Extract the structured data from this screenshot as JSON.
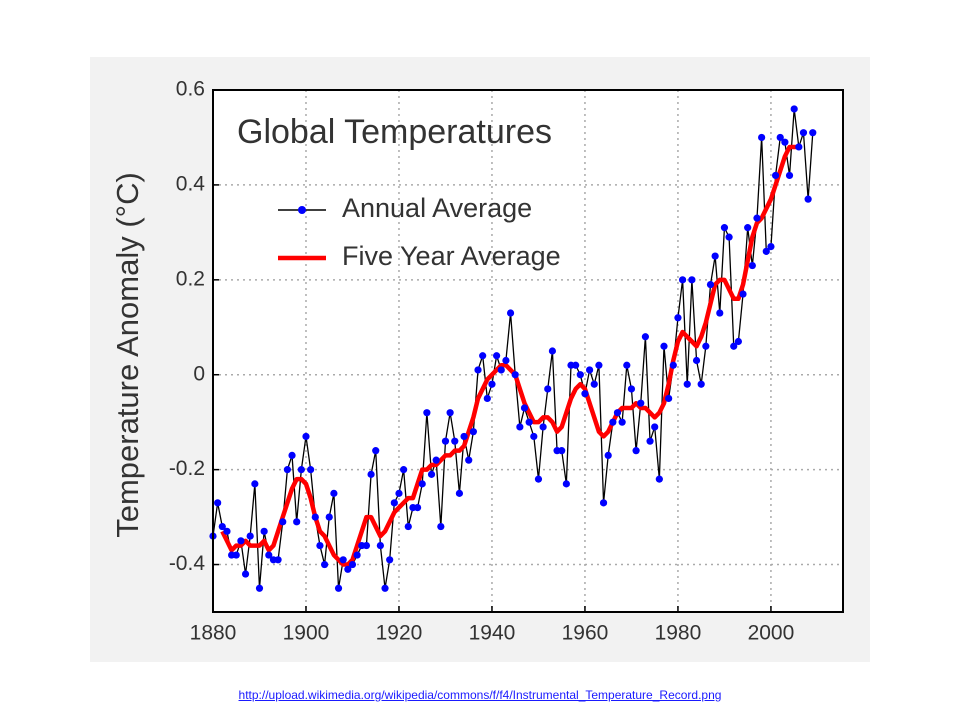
{
  "chart_data": {
    "type": "line",
    "title": "Global Temperatures",
    "y_label": "Temperature Anomaly (°C)",
    "x": [
      1880,
      1881,
      1882,
      1883,
      1884,
      1885,
      1886,
      1887,
      1888,
      1889,
      1890,
      1891,
      1892,
      1893,
      1894,
      1895,
      1896,
      1897,
      1898,
      1899,
      1900,
      1901,
      1902,
      1903,
      1904,
      1905,
      1906,
      1907,
      1908,
      1909,
      1910,
      1911,
      1912,
      1913,
      1914,
      1915,
      1916,
      1917,
      1918,
      1919,
      1920,
      1921,
      1922,
      1923,
      1924,
      1925,
      1926,
      1927,
      1928,
      1929,
      1930,
      1931,
      1932,
      1933,
      1934,
      1935,
      1936,
      1937,
      1938,
      1939,
      1940,
      1941,
      1942,
      1943,
      1944,
      1945,
      1946,
      1947,
      1948,
      1949,
      1950,
      1951,
      1952,
      1953,
      1954,
      1955,
      1956,
      1957,
      1958,
      1959,
      1960,
      1961,
      1962,
      1963,
      1964,
      1965,
      1966,
      1967,
      1968,
      1969,
      1970,
      1971,
      1972,
      1973,
      1974,
      1975,
      1976,
      1977,
      1978,
      1979,
      1980,
      1981,
      1982,
      1983,
      1984,
      1985,
      1986,
      1987,
      1988,
      1989,
      1990,
      1991,
      1992,
      1993,
      1994,
      1995,
      1996,
      1997,
      1998,
      1999,
      2000,
      2001,
      2002,
      2003,
      2004,
      2005,
      2006,
      2007,
      2008,
      2009
    ],
    "series": [
      {
        "name": "Annual Average",
        "color": "#0000ff",
        "line_color": "#000000",
        "markers": true,
        "values": [
          -0.34,
          -0.27,
          -0.32,
          -0.33,
          -0.38,
          -0.38,
          -0.35,
          -0.42,
          -0.34,
          -0.23,
          -0.45,
          -0.33,
          -0.38,
          -0.39,
          -0.39,
          -0.31,
          -0.2,
          -0.17,
          -0.31,
          -0.2,
          -0.13,
          -0.2,
          -0.3,
          -0.36,
          -0.4,
          -0.3,
          -0.25,
          -0.45,
          -0.39,
          -0.41,
          -0.4,
          -0.38,
          -0.36,
          -0.36,
          -0.21,
          -0.16,
          -0.36,
          -0.45,
          -0.39,
          -0.27,
          -0.25,
          -0.2,
          -0.32,
          -0.28,
          -0.28,
          -0.23,
          -0.08,
          -0.21,
          -0.18,
          -0.32,
          -0.14,
          -0.08,
          -0.14,
          -0.25,
          -0.13,
          -0.18,
          -0.12,
          0.01,
          0.04,
          -0.05,
          -0.02,
          0.04,
          0.01,
          0.03,
          0.13,
          0.0,
          -0.11,
          -0.07,
          -0.1,
          -0.13,
          -0.22,
          -0.11,
          -0.03,
          0.05,
          -0.16,
          -0.16,
          -0.23,
          0.02,
          0.02,
          0.0,
          -0.04,
          0.01,
          -0.02,
          0.02,
          -0.27,
          -0.17,
          -0.1,
          -0.08,
          -0.1,
          0.02,
          -0.03,
          -0.16,
          -0.06,
          0.08,
          -0.14,
          -0.11,
          -0.22,
          0.06,
          -0.05,
          0.02,
          0.12,
          0.2,
          -0.02,
          0.2,
          0.03,
          -0.02,
          0.06,
          0.19,
          0.25,
          0.13,
          0.31,
          0.29,
          0.06,
          0.07,
          0.17,
          0.31,
          0.23,
          0.33,
          0.5,
          0.26,
          0.27,
          0.42,
          0.5,
          0.49,
          0.42,
          0.56,
          0.48,
          0.51,
          0.37,
          0.51
        ]
      },
      {
        "name": "Five Year Average",
        "color": "#ff0000",
        "markers": false,
        "values": [
          null,
          null,
          -0.33,
          -0.35,
          -0.37,
          -0.36,
          -0.36,
          -0.35,
          -0.36,
          -0.36,
          -0.36,
          -0.35,
          -0.37,
          -0.36,
          -0.33,
          -0.3,
          -0.27,
          -0.24,
          -0.22,
          -0.22,
          -0.23,
          -0.26,
          -0.3,
          -0.33,
          -0.34,
          -0.36,
          -0.38,
          -0.39,
          -0.4,
          -0.4,
          -0.39,
          -0.36,
          -0.33,
          -0.3,
          -0.3,
          -0.32,
          -0.34,
          -0.33,
          -0.31,
          -0.29,
          -0.28,
          -0.27,
          -0.26,
          -0.26,
          -0.23,
          -0.2,
          -0.2,
          -0.19,
          -0.19,
          -0.18,
          -0.17,
          -0.17,
          -0.16,
          -0.16,
          -0.15,
          -0.12,
          -0.09,
          -0.05,
          -0.03,
          -0.01,
          0.0,
          0.01,
          0.02,
          0.02,
          0.01,
          0.0,
          -0.03,
          -0.06,
          -0.08,
          -0.1,
          -0.1,
          -0.09,
          -0.09,
          -0.1,
          -0.12,
          -0.11,
          -0.08,
          -0.05,
          -0.03,
          -0.02,
          -0.03,
          -0.06,
          -0.09,
          -0.12,
          -0.13,
          -0.12,
          -0.1,
          -0.08,
          -0.07,
          -0.07,
          -0.07,
          -0.06,
          -0.07,
          -0.07,
          -0.08,
          -0.09,
          -0.08,
          -0.06,
          -0.02,
          0.03,
          0.07,
          0.09,
          0.08,
          0.07,
          0.06,
          0.08,
          0.11,
          0.15,
          0.19,
          0.2,
          0.2,
          0.18,
          0.16,
          0.16,
          0.19,
          0.24,
          0.29,
          0.32,
          0.33,
          0.35,
          0.37,
          0.4,
          0.43,
          0.46,
          0.48,
          0.48,
          0.48,
          null,
          null,
          null
        ]
      }
    ],
    "xlim": [
      1880,
      2015.5
    ],
    "ylim": [
      -0.5,
      0.6
    ],
    "xticks": [
      1880,
      1900,
      1920,
      1940,
      1960,
      1980,
      2000
    ],
    "yticks": [
      -0.4,
      -0.2,
      0,
      0.2,
      0.4,
      0.6
    ],
    "grid": true,
    "legend": "upper left"
  },
  "source_link": "http://upload.wikimedia.org/wikipedia/commons/f/f4/Instrumental_Temperature_Record.png"
}
